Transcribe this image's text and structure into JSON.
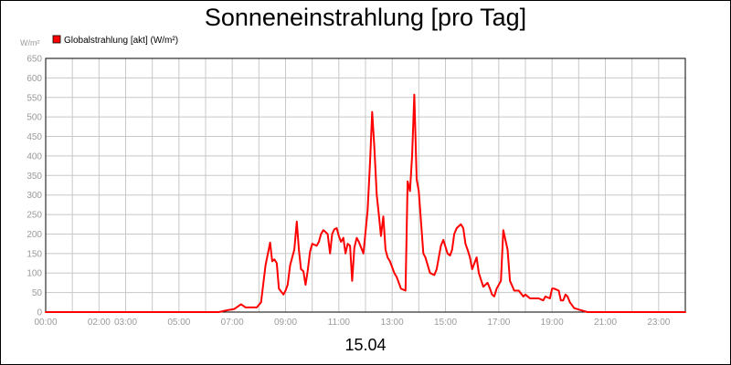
{
  "chart_data": {
    "type": "line",
    "title": "Sonneneinstrahlung [pro Tag]",
    "ylabel": "W/m²",
    "xlabel": "15.04",
    "ylim": [
      0,
      650
    ],
    "xlim": [
      0,
      24
    ],
    "grid": true,
    "legend_position": "top-left",
    "y_ticks": [
      0,
      50,
      100,
      150,
      200,
      250,
      300,
      350,
      400,
      450,
      500,
      550,
      600,
      650
    ],
    "x_ticks": [
      {
        "value": 0,
        "label": "00:00"
      },
      {
        "value": 2,
        "label": "02:00"
      },
      {
        "value": 3,
        "label": "03:00"
      },
      {
        "value": 5,
        "label": "05:00"
      },
      {
        "value": 7,
        "label": "07:00"
      },
      {
        "value": 9,
        "label": "09:00"
      },
      {
        "value": 11,
        "label": "11:00"
      },
      {
        "value": 13,
        "label": "13:00"
      },
      {
        "value": 15,
        "label": "15:00"
      },
      {
        "value": 17,
        "label": "17:00"
      },
      {
        "value": 19,
        "label": "19:00"
      },
      {
        "value": 21,
        "label": "21:00"
      },
      {
        "value": 23,
        "label": "23:00"
      }
    ],
    "series": [
      {
        "name": "Globalstrahlung [akt] (W/m²)",
        "color": "#ff0000",
        "x": [
          0,
          6.5,
          6.83,
          7.08,
          7.33,
          7.5,
          7.75,
          7.92,
          8.08,
          8.25,
          8.42,
          8.5,
          8.58,
          8.67,
          8.75,
          8.92,
          9.0,
          9.08,
          9.17,
          9.25,
          9.33,
          9.42,
          9.5,
          9.58,
          9.67,
          9.75,
          9.83,
          9.92,
          10.0,
          10.17,
          10.25,
          10.33,
          10.42,
          10.5,
          10.58,
          10.67,
          10.75,
          10.83,
          10.92,
          11.0,
          11.08,
          11.17,
          11.25,
          11.33,
          11.42,
          11.5,
          11.58,
          11.67,
          11.75,
          11.92,
          12.08,
          12.17,
          12.25,
          12.33,
          12.42,
          12.5,
          12.58,
          12.67,
          12.75,
          12.83,
          12.92,
          13.08,
          13.17,
          13.33,
          13.5,
          13.58,
          13.67,
          13.75,
          13.83,
          13.92,
          14.0,
          14.17,
          14.25,
          14.42,
          14.58,
          14.67,
          14.83,
          14.92,
          15.08,
          15.17,
          15.25,
          15.33,
          15.42,
          15.58,
          15.67,
          15.75,
          15.83,
          15.92,
          16.0,
          16.17,
          16.25,
          16.42,
          16.58,
          16.67,
          16.75,
          16.83,
          16.92,
          17.08,
          17.17,
          17.33,
          17.42,
          17.58,
          17.75,
          17.92,
          18.0,
          18.17,
          18.33,
          18.5,
          18.67,
          18.75,
          18.92,
          19.0,
          19.08,
          19.25,
          19.33,
          19.42,
          19.5,
          19.58,
          19.67,
          19.83,
          20.08,
          20.33,
          24
        ],
        "values": [
          0,
          0,
          5,
          8,
          20,
          12,
          12,
          12,
          25,
          120,
          178,
          130,
          135,
          125,
          60,
          45,
          55,
          70,
          120,
          140,
          160,
          232,
          160,
          110,
          105,
          70,
          105,
          155,
          175,
          170,
          180,
          200,
          210,
          205,
          200,
          150,
          200,
          212,
          215,
          195,
          180,
          190,
          150,
          175,
          170,
          80,
          165,
          190,
          180,
          150,
          260,
          385,
          513,
          425,
          300,
          250,
          195,
          245,
          160,
          140,
          130,
          100,
          90,
          60,
          55,
          335,
          310,
          400,
          557,
          340,
          310,
          150,
          140,
          100,
          95,
          110,
          170,
          185,
          150,
          145,
          160,
          200,
          215,
          225,
          215,
          175,
          160,
          140,
          110,
          140,
          100,
          65,
          75,
          60,
          45,
          40,
          60,
          80,
          210,
          160,
          80,
          55,
          55,
          40,
          45,
          35,
          35,
          35,
          30,
          40,
          35,
          60,
          60,
          55,
          30,
          30,
          45,
          40,
          25,
          10,
          5,
          0,
          0
        ]
      }
    ]
  }
}
